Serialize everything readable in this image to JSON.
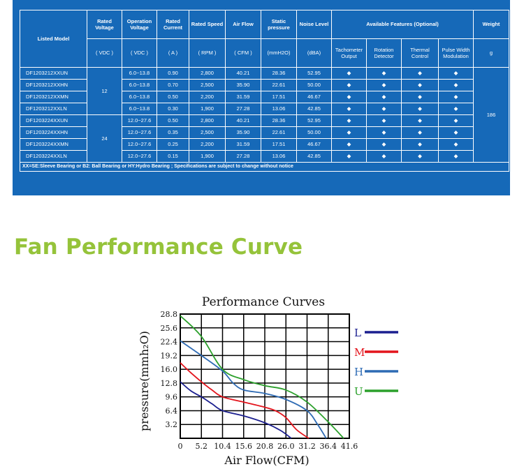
{
  "table": {
    "headers": {
      "model": "Listed Model",
      "voltage": "Rated Voltage",
      "operation_voltage": "Operation Voltage",
      "current": "Rated Current",
      "speed": "Rated Speed",
      "airflow": "Air Flow",
      "pressure": "Static pressure",
      "noise": "Noise Level",
      "features": "Available Features (Optional)",
      "weight": "Weight"
    },
    "units": {
      "voltage": "( VDC )",
      "operation_voltage": "( VDC )",
      "current": "( A )",
      "speed": "( RPM )",
      "airflow": "( CFM )",
      "pressure": "(mmH2O)",
      "noise": "(dBA)",
      "weight": "g"
    },
    "features": [
      "Tachometer Output",
      "Rotation Detector",
      "Thermal Control",
      "Pulse Width Modulation"
    ],
    "feature_mark": "◆",
    "voltage_groups": [
      "12",
      "24"
    ],
    "weight_value": "186",
    "rows": [
      {
        "model": "DF1203212XXUN",
        "op": "6.0~13.8",
        "current": "0.90",
        "speed": "2,800",
        "airflow": "40.21",
        "pressure": "28.36",
        "noise": "52.95"
      },
      {
        "model": "DF1203212XXHN",
        "op": "6.0~13.8",
        "current": "0.70",
        "speed": "2,500",
        "airflow": "35.90",
        "pressure": "22.61",
        "noise": "50.00"
      },
      {
        "model": "DF1203212XXMN",
        "op": "6.0~13.8",
        "current": "0.50",
        "speed": "2,200",
        "airflow": "31.59",
        "pressure": "17.51",
        "noise": "46.67"
      },
      {
        "model": "DF1203212XXLN",
        "op": "6.0~13.8",
        "current": "0.30",
        "speed": "1,900",
        "airflow": "27.28",
        "pressure": "13.06",
        "noise": "42.85"
      },
      {
        "model": "DF1203224XXUN",
        "op": "12.0~27.6",
        "current": "0.50",
        "speed": "2,800",
        "airflow": "40.21",
        "pressure": "28.36",
        "noise": "52.95"
      },
      {
        "model": "DF1203224XXHN",
        "op": "12.0~27.6",
        "current": "0.35",
        "speed": "2,500",
        "airflow": "35.90",
        "pressure": "22.61",
        "noise": "50.00"
      },
      {
        "model": "DF1203224XXMN",
        "op": "12.0~27.6",
        "current": "0.25",
        "speed": "2,200",
        "airflow": "31.59",
        "pressure": "17.51",
        "noise": "46.67"
      },
      {
        "model": "DF1203224XXLN",
        "op": "12.0~27.6",
        "current": "0.15",
        "speed": "1,900",
        "airflow": "27.28",
        "pressure": "13.06",
        "noise": "42.85"
      }
    ],
    "note": "XX=SE:Sleeve Bearing or B2: Ball Bearing or HY:Hydro Bearing ; Specifications are subject to change without notice"
  },
  "section_heading": "Fan Performance Curve",
  "chart_data": {
    "type": "line",
    "title": "Performance Curves",
    "xlabel": "Air Flow(CFM)",
    "ylabel": "pressure(mmh₂O)",
    "xlim": [
      0,
      41.6
    ],
    "ylim": [
      0,
      28.8
    ],
    "x_ticks": [
      "0",
      "5.2",
      "10.4",
      "15.6",
      "20.8",
      "26.0",
      "31.2",
      "36.4",
      "41.6"
    ],
    "y_ticks": [
      "3.2",
      "6.4",
      "9.6",
      "12.8",
      "16.0",
      "19.2",
      "22.4",
      "25.6",
      "28.8"
    ],
    "grid": true,
    "legend_position": "right",
    "series": [
      {
        "name": "L",
        "color": "#1b1f8f",
        "x": [
          0,
          2.6,
          5.2,
          7.8,
          10.4,
          15.6,
          20.8,
          24.7,
          27.3
        ],
        "y": [
          13.1,
          11.0,
          9.6,
          8.0,
          6.4,
          5.2,
          3.6,
          1.8,
          0
        ]
      },
      {
        "name": "M",
        "color": "#e3141c",
        "x": [
          0,
          2.6,
          5.2,
          7.8,
          10.4,
          15.6,
          20.8,
          23.4,
          26.0,
          28.6,
          31.6
        ],
        "y": [
          17.5,
          15.2,
          13.1,
          11.2,
          9.6,
          8.4,
          7.2,
          6.4,
          4.8,
          2.0,
          0
        ]
      },
      {
        "name": "H",
        "color": "#2e6bb4",
        "x": [
          0,
          5.2,
          10.4,
          13.0,
          15.6,
          20.8,
          26.0,
          31.2,
          33.8,
          35.9
        ],
        "y": [
          22.6,
          19.2,
          15.6,
          12.8,
          11.2,
          10.4,
          9.0,
          6.4,
          3.2,
          0
        ]
      },
      {
        "name": "U",
        "color": "#2ca02c",
        "x": [
          0,
          5.2,
          10.4,
          15.6,
          20.8,
          26.0,
          31.2,
          36.4,
          40.2
        ],
        "y": [
          28.4,
          23.6,
          16.0,
          13.6,
          12.2,
          11.2,
          8.4,
          3.8,
          0
        ]
      }
    ]
  }
}
